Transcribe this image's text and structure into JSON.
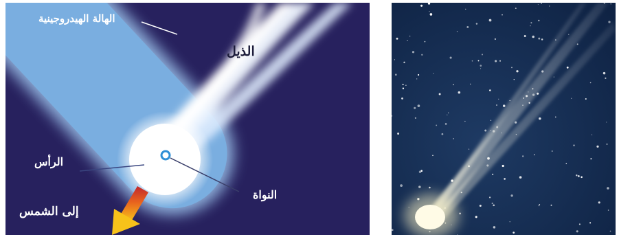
{
  "diagram": {
    "labels": {
      "hydrogen_halo": "الهالة الهيدروجينية",
      "tail": "الذيل",
      "head": "الرأس",
      "nucleus": "النواة",
      "to_sun": "إلى الشمس"
    },
    "colors": {
      "space_background": "#27215e",
      "halo": "#7aaee0",
      "tail": "#e8f2ff",
      "head_glow": "#ffffff",
      "nucleus": "#2f8fd6",
      "arrow_start": "#c0272d",
      "arrow_end": "#f7c21a"
    }
  },
  "photo": {
    "description_icon": "comet-photo",
    "colors": {
      "sky": "#163055",
      "comet_head": "#fffbe0",
      "stars": "#ffffff"
    }
  }
}
